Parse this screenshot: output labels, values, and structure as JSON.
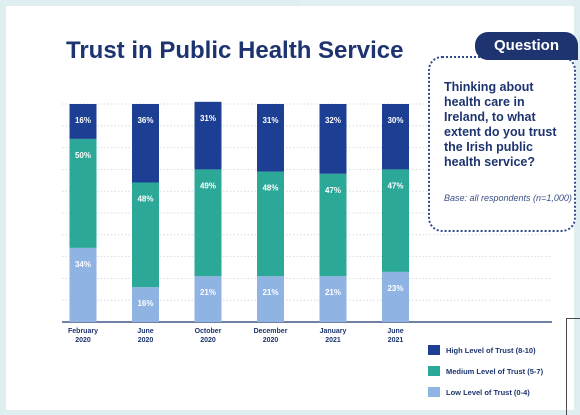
{
  "chart_data": {
    "type": "bar",
    "stacked": true,
    "title": "Trust in Public Health Service",
    "categories": [
      [
        "February",
        "2020"
      ],
      [
        "June",
        "2020"
      ],
      [
        "October",
        "2020"
      ],
      [
        "December",
        "2020"
      ],
      [
        "January",
        "2021"
      ],
      [
        "June",
        "2021"
      ]
    ],
    "series": [
      {
        "name": "Low Level of Trust (0-4)",
        "color": "#8fb3e3",
        "values": [
          34,
          16,
          21,
          21,
          21,
          23
        ]
      },
      {
        "name": "Medium Level of Trust (5-7)",
        "color": "#2ba898",
        "values": [
          50,
          48,
          49,
          48,
          47,
          47
        ]
      },
      {
        "name": "High Level of Trust (8-10)",
        "color": "#1c3f94",
        "values": [
          16,
          36,
          31,
          31,
          32,
          30
        ]
      }
    ],
    "ylim": [
      0,
      100
    ],
    "grid": true,
    "legend": "bottom-right"
  },
  "question": {
    "tab": "Question",
    "text": "Thinking about health care in Ireland, to what extent do you trust the Irish public health service?",
    "base": "Base: all respondents (n=1,000)"
  }
}
